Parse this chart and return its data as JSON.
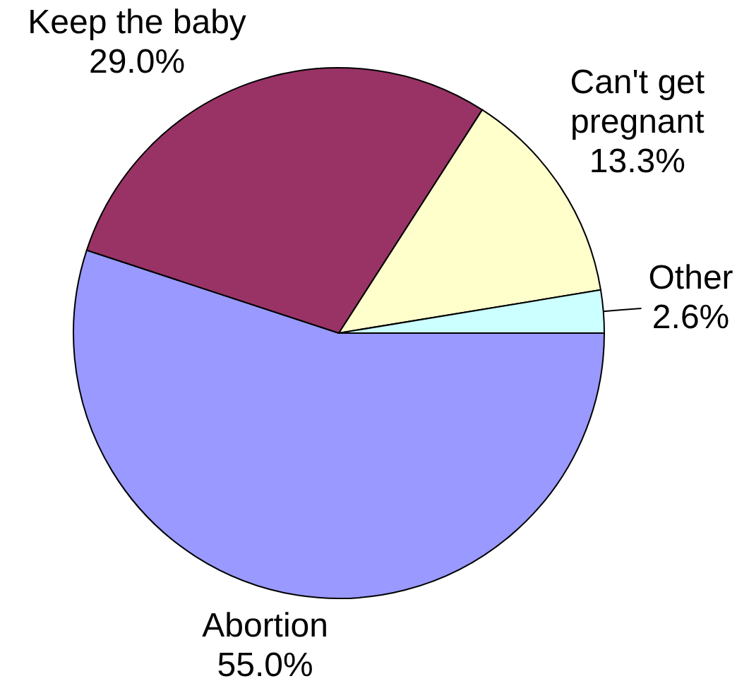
{
  "chart_data": {
    "type": "pie",
    "categories": [
      "Abortion",
      "Keep the baby",
      "Can't get pregnant",
      "Other"
    ],
    "values": [
      55.0,
      29.0,
      13.3,
      2.6
    ],
    "value_labels": [
      "55.0%",
      "29.0%",
      "13.3%",
      "2.6%"
    ],
    "colors": [
      "#9999ff",
      "#993366",
      "#ffffcc",
      "#ccffff"
    ]
  }
}
